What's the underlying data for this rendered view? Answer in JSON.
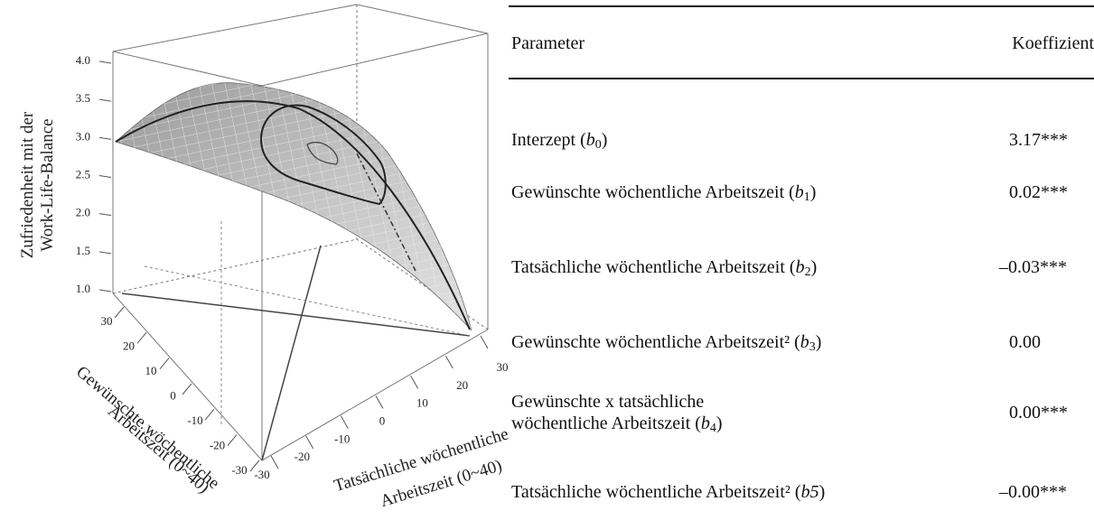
{
  "plot": {
    "z_axis_label": [
      "Zufriedenheit mit der",
      "Work-Life-Balance"
    ],
    "z_ticks": [
      "4.0",
      "3.5",
      "3.0",
      "2.5",
      "2.0",
      "1.5",
      "1.0"
    ],
    "x_axis_label": [
      "Gewünschte wöchentliche",
      "Arbeitszeit (0~40)"
    ],
    "x_ticks": [
      "30",
      "20",
      "10",
      "0",
      "-10",
      "-20",
      "-30"
    ],
    "y_axis_label": [
      "Tatsächliche wöchentliche",
      "Arbeitszeit (0~40)"
    ],
    "y_ticks": [
      "-30",
      "-20",
      "-10",
      "0",
      "10",
      "20",
      "30"
    ]
  },
  "table": {
    "header": [
      "Parameter",
      "Koeffizient"
    ],
    "rows": [
      {
        "label": "Interzept (",
        "symbol": "b",
        "index": "0",
        "close": ")",
        "coefficient": "3.17***"
      },
      {
        "label": "Gewünschte wöchentliche Arbeitszeit (",
        "symbol": "b",
        "index": "1",
        "close": ")",
        "coefficient": "0.02***"
      },
      {
        "label": "Tatsächliche wöchentliche Arbeitszeit (",
        "symbol": "b",
        "index": "2",
        "close": ")",
        "coefficient": "–0.03***"
      },
      {
        "label": "Gewünschte wöchentliche Arbeitszeit² (",
        "symbol": "b",
        "index": "3",
        "close": ")",
        "coefficient": "0.00"
      },
      {
        "label": "Gewünschte x tatsächliche wöchentliche Arbeitszeit (",
        "symbol": "b",
        "index": "4",
        "close": ")",
        "coefficient": "0.00***"
      },
      {
        "label": "Tatsächliche wöchentliche Arbeitszeit² (",
        "symbol": "b5",
        "close": ")",
        "coefficient": "–0.00***"
      }
    ]
  }
}
